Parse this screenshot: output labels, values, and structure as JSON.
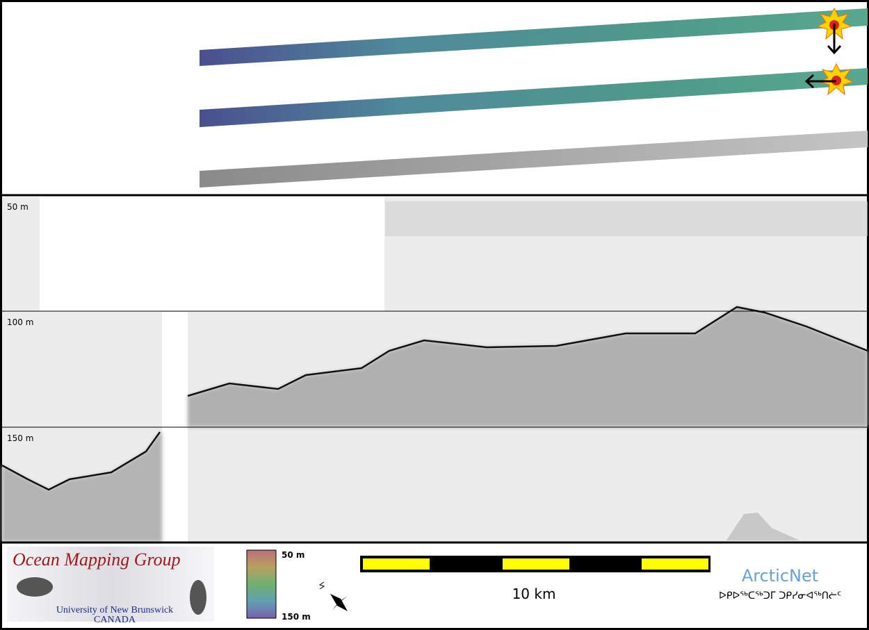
{
  "depth_labels": [
    "50 m",
    "100 m",
    "150 m"
  ],
  "logo": {
    "title": "Ocean Mapping Group",
    "university": "University of New Brunswick",
    "country": "CANADA"
  },
  "colorbar": {
    "top": "50 m",
    "bottom": "150 m"
  },
  "scale_bar": {
    "label": "10 km"
  },
  "partner": {
    "name": "ArcticNet",
    "syllabics": "ᐅᑭᐅᖅᑕᖅᑐᒥ ᑐᑭᓯᓂᐊᖅᑎᓖᑦ"
  }
}
